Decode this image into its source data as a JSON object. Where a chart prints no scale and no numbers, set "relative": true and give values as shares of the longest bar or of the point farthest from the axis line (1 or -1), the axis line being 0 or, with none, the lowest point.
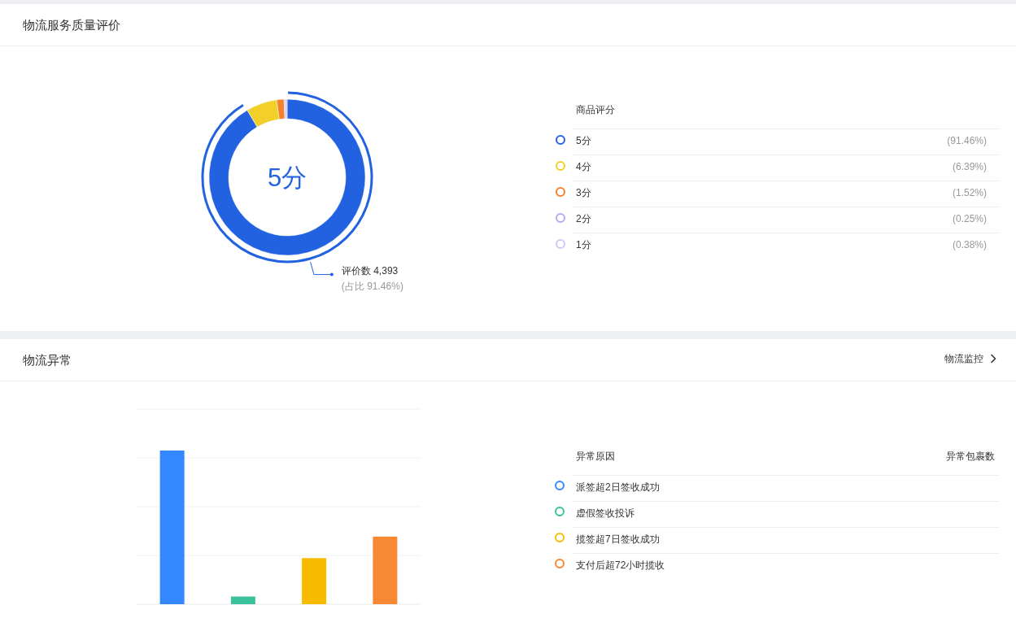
{
  "chart_data": [
    {
      "type": "donut",
      "title": "物流服务质量评价",
      "legend_title": "商品评分",
      "categories": [
        "5分",
        "4分",
        "3分",
        "2分",
        "1分"
      ],
      "values": [
        91.46,
        6.39,
        1.52,
        0.25,
        0.38
      ],
      "colors": [
        "#2262e0",
        "#f3cf2a",
        "#f5812b",
        "#b8a8ee",
        "#d2c8f5"
      ],
      "value_labels": [
        "(91.46%)",
        "(6.39%)",
        "(1.52%)",
        "(0.25%)",
        "(0.38%)"
      ],
      "legend": "right",
      "annotations": [
        "5分",
        "评价数 4,393",
        "(占比 91.46%)"
      ]
    },
    {
      "type": "bar",
      "title": "物流异常",
      "legend_title": "异常原因",
      "categories": [
        null,
        null,
        null,
        null
      ],
      "relative": true,
      "stacked": true,
      "grid": "y",
      "legend": "right",
      "series": [
        {
          "name": "派签超2日签收成功",
          "color": "#3388ff",
          "values": [
            1,
            null,
            null,
            null
          ]
        },
        {
          "name": "虚假签收投诉",
          "color": "#3bc29a",
          "values": [
            null,
            0.05,
            null,
            null
          ]
        },
        {
          "name": "揽签超7日签收成功",
          "color": "#f8bb00",
          "values": [
            null,
            null,
            0.3,
            null
          ]
        },
        {
          "name": "支付后超72小时揽收",
          "color": "#f78834",
          "values": [
            null,
            null,
            null,
            0.44
          ]
        }
      ],
      "annotations": [
        "物流监控",
        "异常包裹数"
      ]
    }
  ]
}
